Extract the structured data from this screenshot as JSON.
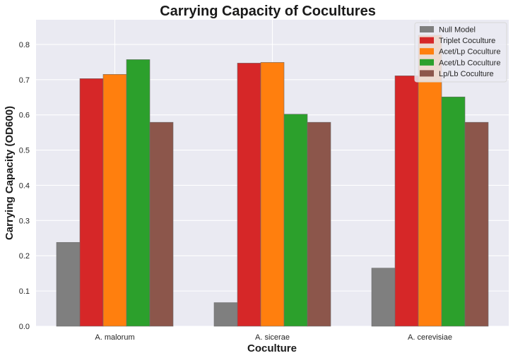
{
  "chart_data": {
    "type": "bar",
    "title": "Carrying Capacity of Cocultures",
    "xlabel": "Coculture",
    "ylabel": "Carrying Capacity (OD600)",
    "ylim": [
      0,
      0.87
    ],
    "yticks": [
      0.0,
      0.1,
      0.2,
      0.3,
      0.4,
      0.5,
      0.6,
      0.7,
      0.8
    ],
    "ytick_labels": [
      "0.0",
      "0.1",
      "0.2",
      "0.3",
      "0.4",
      "0.5",
      "0.6",
      "0.7",
      "0.8"
    ],
    "grid": true,
    "legend_position": "top-right",
    "categories": [
      "A. malorum",
      "A. sicerae",
      "A. cerevisiae"
    ],
    "series": [
      {
        "name": "Null Model",
        "color": "#7f7f7f",
        "values": [
          0.238,
          0.067,
          0.165
        ]
      },
      {
        "name": "Triplet Coculture",
        "color": "#d62728",
        "values": [
          0.703,
          0.747,
          0.711
        ]
      },
      {
        "name": "Acet/Lp Coculture",
        "color": "#ff7f0e",
        "values": [
          0.715,
          0.749,
          0.826
        ]
      },
      {
        "name": "Acet/Lb Coculture",
        "color": "#2ca02c",
        "values": [
          0.757,
          0.602,
          0.651
        ]
      },
      {
        "name": "Lp/Lb Coculture",
        "color": "#8c564b",
        "values": [
          0.579,
          0.579,
          0.579
        ]
      }
    ]
  }
}
